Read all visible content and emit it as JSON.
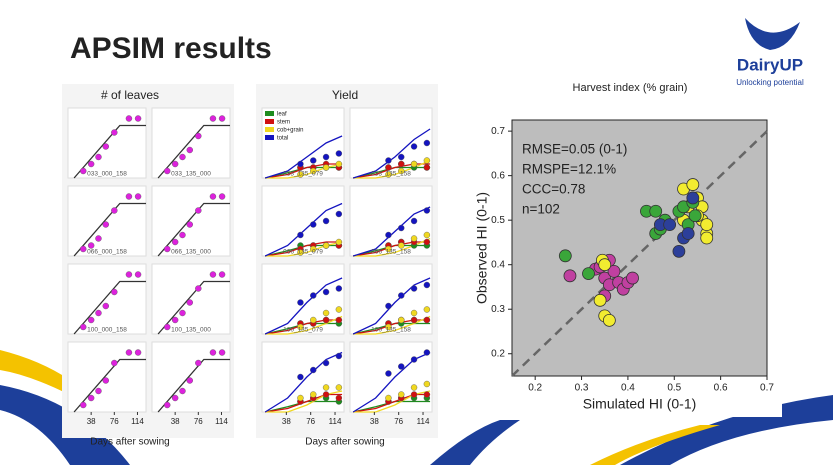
{
  "slide": {
    "title": "APSIM results",
    "logo": "DairyUP",
    "logo_tagline": "Unlocking potential"
  },
  "chart_data": [
    {
      "type": "small-multiples",
      "title": "# of leaves",
      "xlabel": "Days after sowing",
      "xlim": [
        0,
        128
      ],
      "xticks": [
        38,
        76,
        114
      ],
      "ylim": [
        0,
        20
      ],
      "series": [
        {
          "color": "#dd22dd",
          "line_color": "#333333"
        }
      ],
      "sim_x": [
        10,
        85,
        128
      ],
      "obs_x": [
        25,
        38,
        50,
        62,
        76,
        100,
        115
      ],
      "panels": [
        {
          "label": "033_000_158",
          "sim": [
            [
              0,
              15,
              15
            ]
          ],
          "obs": [
            [
              2,
              4,
              6,
              9,
              13,
              17,
              17
            ]
          ]
        },
        {
          "label": "033_135_000",
          "sim": [
            [
              0,
              15,
              15
            ]
          ],
          "obs": [
            [
              2,
              4,
              6,
              8,
              12,
              17,
              17
            ]
          ]
        },
        {
          "label": "066_000_158",
          "sim": [
            [
              0,
              15,
              15
            ]
          ],
          "obs": [
            [
              2,
              3,
              5,
              9,
              13,
              17,
              17
            ]
          ]
        },
        {
          "label": "066_135_000",
          "sim": [
            [
              0,
              15,
              15
            ]
          ],
          "obs": [
            [
              2,
              4,
              6,
              9,
              13,
              17,
              17
            ]
          ]
        },
        {
          "label": "100_000_158",
          "sim": [
            [
              0,
              15,
              15
            ]
          ],
          "obs": [
            [
              2,
              4,
              6,
              8,
              12,
              17,
              17
            ]
          ]
        },
        {
          "label": "100_135_000",
          "sim": [
            [
              0,
              15,
              15
            ]
          ],
          "obs": [
            [
              2,
              4,
              6,
              9,
              13,
              17,
              17
            ]
          ]
        },
        {
          "label": null,
          "sim": [
            [
              0,
              15,
              15
            ]
          ],
          "obs": [
            [
              2,
              4,
              6,
              9,
              14,
              17,
              17
            ]
          ]
        },
        {
          "label": null,
          "sim": [
            [
              0,
              15,
              15
            ]
          ],
          "obs": [
            [
              2,
              4,
              6,
              9,
              14,
              17,
              17
            ]
          ]
        }
      ]
    },
    {
      "type": "small-multiples",
      "title": "Yield",
      "xlabel": "Days after sowing",
      "xlim": [
        0,
        128
      ],
      "xticks": [
        38,
        76,
        114
      ],
      "ylim": [
        0,
        20
      ],
      "series": [
        {
          "name": "leaf",
          "color": "#1e8c1e"
        },
        {
          "name": "stem",
          "color": "#d01010"
        },
        {
          "name": "cob+grain",
          "color": "#f0d820"
        },
        {
          "name": "total",
          "color": "#1414c0"
        }
      ],
      "sim_x": [
        5,
        40,
        70,
        100,
        125
      ],
      "obs_x": [
        60,
        80,
        100,
        120
      ],
      "panels": [
        {
          "label": "033_135_079",
          "sim": [
            [
              0,
              1.5,
              3,
              3,
              3
            ],
            [
              0,
              1,
              3,
              4,
              4
            ],
            [
              0,
              0,
              1,
              3,
              4
            ],
            [
              0,
              2,
              6,
              10,
              12
            ]
          ],
          "obs": [
            [
              3,
              3,
              3,
              3
            ],
            [
              3,
              3,
              4,
              3
            ],
            [
              1,
              2,
              3,
              4
            ],
            [
              4,
              5,
              6,
              7
            ]
          ]
        },
        {
          "label": "033_135_158",
          "sim": [
            [
              0,
              1.5,
              3,
              3,
              3
            ],
            [
              0,
              1,
              3,
              4,
              4
            ],
            [
              0,
              0,
              1,
              3,
              5
            ],
            [
              0,
              2,
              6,
              11,
              14
            ]
          ],
          "obs": [
            [
              3,
              4,
              3,
              3
            ],
            [
              3,
              4,
              4,
              3
            ],
            [
              1,
              2,
              4,
              5
            ],
            [
              5,
              6,
              9,
              10
            ]
          ]
        },
        {
          "label": "066_135_079",
          "sim": [
            [
              0,
              1.5,
              3,
              3,
              3
            ],
            [
              0,
              1,
              3,
              4,
              4
            ],
            [
              0,
              0,
              1,
              3,
              4
            ],
            [
              0,
              3,
              8,
              13,
              15
            ]
          ],
          "obs": [
            [
              3,
              3,
              3,
              3
            ],
            [
              2,
              3,
              3,
              3
            ],
            [
              1,
              2,
              3,
              4
            ],
            [
              6,
              9,
              10,
              12
            ]
          ]
        },
        {
          "label": "066_135_158",
          "sim": [
            [
              0,
              1.5,
              3,
              3,
              3
            ],
            [
              0,
              1,
              3,
              4,
              4
            ],
            [
              0,
              0,
              1,
              3,
              5
            ],
            [
              0,
              2,
              7,
              12,
              14
            ]
          ],
          "obs": [
            [
              3,
              4,
              3,
              3
            ],
            [
              3,
              4,
              4,
              4
            ],
            [
              2,
              3,
              5,
              6
            ],
            [
              6,
              8,
              10,
              13
            ]
          ]
        },
        {
          "label": "100_135_079",
          "sim": [
            [
              0,
              1.5,
              3,
              3,
              3
            ],
            [
              0,
              1,
              3,
              4,
              4
            ],
            [
              0,
              0,
              1,
              3,
              5
            ],
            [
              0,
              3,
              9,
              14,
              16
            ]
          ],
          "obs": [
            [
              3,
              3,
              4,
              3
            ],
            [
              3,
              3,
              4,
              4
            ],
            [
              2,
              4,
              6,
              7
            ],
            [
              9,
              11,
              12,
              13
            ]
          ]
        },
        {
          "label": "100_135_158",
          "sim": [
            [
              0,
              1.5,
              3,
              3,
              3
            ],
            [
              0,
              1,
              3,
              4,
              4
            ],
            [
              0,
              0,
              1,
              3,
              5
            ],
            [
              0,
              3,
              9,
              14,
              16
            ]
          ],
          "obs": [
            [
              3,
              3,
              4,
              4
            ],
            [
              3,
              4,
              4,
              4
            ],
            [
              2,
              4,
              6,
              7
            ],
            [
              8,
              11,
              13,
              14
            ]
          ]
        },
        {
          "label": null,
          "sim": [
            [
              0,
              1.5,
              3,
              3,
              3
            ],
            [
              0,
              1,
              3,
              5,
              5
            ],
            [
              0,
              0,
              2,
              5,
              6
            ],
            [
              0,
              4,
              10,
              15,
              17
            ]
          ],
          "obs": [
            [
              3,
              4,
              4,
              3
            ],
            [
              3,
              4,
              5,
              4
            ],
            [
              4,
              5,
              7,
              7
            ],
            [
              10,
              12,
              14,
              16
            ]
          ]
        },
        {
          "label": null,
          "sim": [
            [
              0,
              1.5,
              3,
              3,
              3
            ],
            [
              0,
              1,
              3,
              5,
              5
            ],
            [
              0,
              0,
              2,
              5,
              6
            ],
            [
              0,
              4,
              10,
              15,
              17
            ]
          ],
          "obs": [
            [
              3,
              4,
              4,
              4
            ],
            [
              3,
              4,
              5,
              5
            ],
            [
              4,
              5,
              7,
              8
            ],
            [
              11,
              13,
              15,
              17
            ]
          ]
        }
      ]
    },
    {
      "type": "scatter",
      "title": "Harvest index (% grain)",
      "xlabel": "Simulated HI (0-1)",
      "ylabel": "Observed HI (0-1)",
      "xlim": [
        0.15,
        0.7
      ],
      "ylim": [
        0.15,
        0.725
      ],
      "xticks": [
        0.2,
        0.3,
        0.4,
        0.5,
        0.6,
        0.7
      ],
      "yticks": [
        0.2,
        0.3,
        0.4,
        0.5,
        0.6,
        0.7
      ],
      "annotations": [
        "RMSE=0.05 (0-1)",
        "RMSPE=12.1%",
        "CCC=0.78",
        "n=102"
      ],
      "series": [
        {
          "color": "#c040a0",
          "x": [
            0.275,
            0.33,
            0.34,
            0.35,
            0.36,
            0.37,
            0.38,
            0.39,
            0.4,
            0.41,
            0.35,
            0.36
          ],
          "values": [
            0.375,
            0.39,
            0.395,
            0.37,
            0.355,
            0.385,
            0.36,
            0.345,
            0.36,
            0.37,
            0.33,
            0.41
          ]
        },
        {
          "color": "#f2ec30",
          "x": [
            0.34,
            0.35,
            0.36,
            0.345,
            0.35,
            0.52,
            0.54,
            0.55,
            0.56,
            0.56,
            0.57,
            0.57,
            0.55,
            0.52,
            0.53,
            0.57
          ],
          "values": [
            0.32,
            0.285,
            0.275,
            0.41,
            0.4,
            0.57,
            0.58,
            0.55,
            0.53,
            0.5,
            0.47,
            0.46,
            0.51,
            0.5,
            0.53,
            0.49
          ]
        },
        {
          "color": "#3aa63a",
          "x": [
            0.265,
            0.315,
            0.44,
            0.46,
            0.46,
            0.47,
            0.48,
            0.51,
            0.52,
            0.53,
            0.54,
            0.545
          ],
          "values": [
            0.42,
            0.38,
            0.52,
            0.52,
            0.47,
            0.48,
            0.5,
            0.52,
            0.53,
            0.49,
            0.54,
            0.51
          ]
        },
        {
          "color": "#2c3f9a",
          "x": [
            0.47,
            0.49,
            0.51,
            0.52,
            0.54,
            0.53
          ],
          "values": [
            0.49,
            0.49,
            0.43,
            0.46,
            0.55,
            0.47
          ]
        }
      ]
    }
  ]
}
